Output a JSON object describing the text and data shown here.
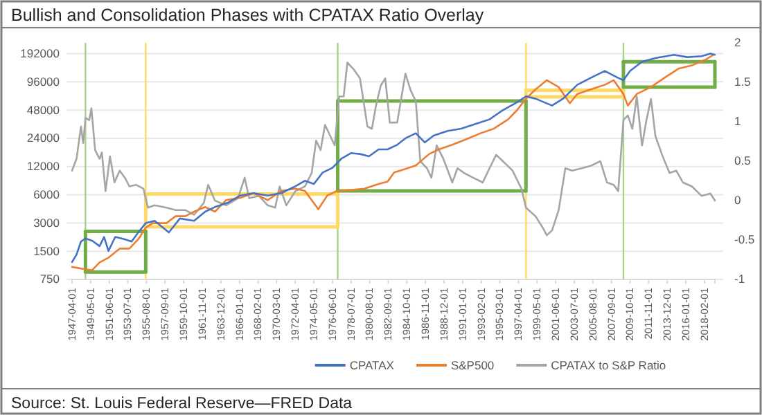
{
  "chart_data": {
    "type": "line",
    "title": "Bullish and Consolidation Phases with CPATAX Ratio Overlay",
    "annotations": [
      "Source: St. Louis Federal Reserve—FRED Data"
    ],
    "xlim": [
      "1947-04",
      "2019-04"
    ],
    "xticks": [
      "1947-04-01",
      "1949-05-01",
      "1951-06-01",
      "1953-07-01",
      "1955-08-01",
      "1957-09-01",
      "1959-10-01",
      "1961-11-01",
      "1963-12-01",
      "1966-01-01",
      "1968-02-01",
      "1970-03-01",
      "1972-04-01",
      "1974-05-01",
      "1976-06-01",
      "1978-07-01",
      "1980-08-01",
      "1982-09-01",
      "1984-10-01",
      "1986-11-01",
      "1988-12-01",
      "1991-01-01",
      "1993-02-01",
      "1995-03-01",
      "1997-04-01",
      "1999-05-01",
      "2001-06-01",
      "2003-07-01",
      "2005-08-01",
      "2007-09-01",
      "2009-10-01",
      "2011-11-01",
      "2013-12-01",
      "2016-01-01",
      "2018-02-01"
    ],
    "log": true,
    "ylim": [
      750,
      250000
    ],
    "yticks": [
      750,
      1500,
      3000,
      6000,
      12000,
      24000,
      48000,
      96000,
      192000
    ],
    "y2lim": [
      -1,
      2
    ],
    "y2ticks": [
      -1,
      -0.5,
      0,
      0.5,
      1,
      1.5,
      2
    ],
    "grid": "y",
    "legend": "bottom",
    "ref_lines": [
      {
        "axis": "x",
        "value": "1948-10",
        "color": "#a9d18e"
      },
      {
        "axis": "x",
        "value": "1955-07",
        "color": "#ffd966"
      },
      {
        "axis": "x",
        "value": "1977-01",
        "color": "#a9d18e"
      },
      {
        "axis": "x",
        "value": "1998-02",
        "color": "#ffd966"
      },
      {
        "axis": "x",
        "value": "2009-01",
        "color": "#a9d18e"
      }
    ],
    "series": [
      {
        "color": "#70ad47",
        "x": [
          "1948-10",
          "1955-07"
        ],
        "values": [
          2440,
          2440
        ],
        "errors": [
          [
            900,
            2440
          ],
          [
            900,
            2440
          ]
        ]
      },
      {
        "color": "#70ad47",
        "x": [
          "1948-10",
          "1955-07"
        ],
        "values": [
          900,
          900
        ]
      },
      {
        "color": "#ffd966",
        "x": [
          "1955-07",
          "1977-01"
        ],
        "values": [
          6100,
          6100
        ],
        "errors": [
          [
            2730,
            6100
          ],
          [
            2730,
            6100
          ]
        ]
      },
      {
        "color": "#ffd966",
        "x": [
          "1955-07",
          "1977-01"
        ],
        "values": [
          2730,
          2730
        ]
      },
      {
        "color": "#70ad47",
        "x": [
          "1977-01",
          "1998-02"
        ],
        "values": [
          59900,
          59900
        ],
        "errors": [
          [
            6600,
            59900
          ],
          [
            6600,
            59900
          ]
        ]
      },
      {
        "color": "#70ad47",
        "x": [
          "1977-01",
          "1998-02"
        ],
        "values": [
          6600,
          6600
        ]
      },
      {
        "color": "#ffd966",
        "x": [
          "1998-02",
          "2009-01"
        ],
        "values": [
          78000,
          78000
        ],
        "errors": [
          [
            66500,
            78000
          ],
          [
            66500,
            78000
          ]
        ]
      },
      {
        "color": "#ffd966",
        "x": [
          "1998-02",
          "2009-01"
        ],
        "values": [
          66500,
          66500
        ]
      },
      {
        "color": "#70ad47",
        "x": [
          "2009-01",
          "2019-04"
        ],
        "values": [
          157300,
          157300
        ],
        "errors": [
          [
            84400,
            157300
          ],
          [
            84400,
            157300
          ]
        ]
      },
      {
        "color": "#70ad47",
        "x": [
          "2009-01",
          "2019-04"
        ],
        "values": [
          84400,
          84400
        ]
      },
      {
        "name": "CPATAX to S&P Ratio",
        "color": "#a5a5a5",
        "axis": "y2",
        "x": [
          "1947-04",
          "1947-10",
          "1948-04",
          "1948-07",
          "1948-10",
          "1949-03",
          "1949-06",
          "1949-11",
          "1950-05",
          "1950-08",
          "1951-01",
          "1951-07",
          "1952-01",
          "1952-08",
          "1953-03",
          "1953-09",
          "1954-06",
          "1955-04",
          "1955-10",
          "1956-07",
          "1957-11",
          "1958-11",
          "1959-12",
          "1960-12",
          "1962-01",
          "1962-07",
          "1963-04",
          "1964-07",
          "1965-11",
          "1966-08",
          "1967-02",
          "1968-03",
          "1969-03",
          "1970-01",
          "1970-07",
          "1971-04",
          "1972-04",
          "1973-05",
          "1974-02",
          "1974-08",
          "1975-02",
          "1975-08",
          "1976-03",
          "1976-09",
          "1977-03",
          "1977-09",
          "1978-02",
          "1978-10",
          "1979-07",
          "1980-05",
          "1980-11",
          "1981-05",
          "1981-11",
          "1982-05",
          "1982-11",
          "1983-09",
          "1984-08",
          "1985-03",
          "1985-10",
          "1986-04",
          "1987-01",
          "1987-07",
          "1988-02",
          "1988-11",
          "1989-11",
          "1990-06",
          "1991-03",
          "1992-03",
          "1993-04",
          "1994-01",
          "1994-10",
          "1995-07",
          "1996-08",
          "1997-08",
          "1998-02",
          "1999-03",
          "2000-01",
          "2000-06",
          "2001-01",
          "2001-10",
          "2002-07",
          "2003-04",
          "2004-05",
          "2005-05",
          "2006-06",
          "2007-03",
          "2007-12",
          "2008-06",
          "2009-01",
          "2009-07",
          "2010-01",
          "2010-07",
          "2011-02",
          "2011-08",
          "2012-02",
          "2012-08",
          "2013-05",
          "2014-03",
          "2014-12",
          "2015-09",
          "2016-09",
          "2017-10",
          "2018-10",
          "2019-04"
        ],
        "values": [
          0.38,
          0.53,
          0.94,
          0.73,
          1.05,
          1.02,
          1.17,
          0.64,
          0.53,
          0.61,
          0.12,
          0.56,
          0.23,
          0.38,
          0.29,
          0.18,
          0.2,
          0.15,
          -0.09,
          -0.06,
          -0.09,
          -0.12,
          -0.12,
          -0.18,
          -0.03,
          0.2,
          0,
          -0.06,
          0.03,
          0.29,
          0.03,
          0.06,
          -0.06,
          -0.09,
          0.18,
          -0.06,
          0.12,
          0.18,
          0.35,
          0.76,
          0.64,
          0.96,
          0.82,
          0.7,
          1.32,
          1.32,
          1.75,
          1.67,
          1.55,
          0.94,
          0.91,
          1.23,
          1.46,
          1.55,
          0.99,
          0.99,
          1.61,
          1.4,
          1.26,
          0.5,
          0.41,
          0.29,
          0.7,
          0.53,
          0.23,
          0.41,
          0.35,
          0.29,
          0.23,
          0.41,
          0.58,
          0.5,
          0.38,
          0.15,
          -0.09,
          -0.2,
          -0.35,
          -0.44,
          -0.38,
          -0.12,
          0.41,
          0.38,
          0.41,
          0.44,
          0.5,
          0.23,
          0.2,
          0.12,
          1.02,
          1.08,
          0.91,
          1.32,
          0.7,
          1.02,
          1.29,
          0.82,
          0.58,
          0.35,
          0.38,
          0.23,
          0.18,
          0.06,
          0.09,
          0
        ]
      },
      {
        "name": "S&P500",
        "color": "#ed7d31",
        "x": [
          "1947-04",
          "1948-04",
          "1949-07",
          "1950-05",
          "1951-05",
          "1952-08",
          "1953-09",
          "1954-09",
          "1955-07",
          "1956-04",
          "1957-11",
          "1958-11",
          "1959-12",
          "1960-12",
          "1962-03",
          "1963-04",
          "1964-07",
          "1966-02",
          "1967-08",
          "1969-03",
          "1970-09",
          "1972-04",
          "1973-05",
          "1974-11",
          "1975-11",
          "1976-12",
          "1978-07",
          "1980-01",
          "1981-08",
          "1982-08",
          "1983-05",
          "1984-03",
          "1985-10",
          "1987-04",
          "1988-05",
          "1989-11",
          "1991-06",
          "1993-01",
          "1994-07",
          "1996-02",
          "1997-02",
          "1998-02",
          "1999-03",
          "2000-06",
          "2001-10",
          "2003-01",
          "2003-11",
          "2005-05",
          "2006-12",
          "2007-12",
          "2009-01",
          "2009-07",
          "2010-07",
          "2012-02",
          "2013-08",
          "2015-03",
          "2016-09",
          "2018-04",
          "2019-02"
        ],
        "values": [
          1020,
          980,
          940,
          1140,
          1280,
          1600,
          1600,
          2010,
          2670,
          2990,
          2990,
          3540,
          3540,
          3960,
          4440,
          3960,
          5260,
          5570,
          6240,
          5260,
          6600,
          6980,
          6600,
          4200,
          5890,
          6600,
          6750,
          6980,
          7820,
          8280,
          10380,
          10990,
          12300,
          16330,
          18290,
          20480,
          23460,
          27190,
          30450,
          38180,
          47900,
          63540,
          79730,
          100000,
          84380,
          56770,
          71200,
          79730,
          89270,
          100000,
          71200,
          53620,
          71200,
          84380,
          105800,
          132700,
          143700,
          166400,
          186500
        ]
      },
      {
        "name": "CPATAX",
        "color": "#4472c4",
        "x": [
          "1947-04",
          "1947-10",
          "1948-04",
          "1948-10",
          "1949-07",
          "1950-05",
          "1950-11",
          "1951-05",
          "1952-02",
          "1953-03",
          "1953-12",
          "1954-09",
          "1955-07",
          "1956-07",
          "1958-02",
          "1959-05",
          "1960-12",
          "1962-03",
          "1963-04",
          "1964-10",
          "1966-02",
          "1967-08",
          "1969-03",
          "1970-09",
          "1972-04",
          "1973-05",
          "1974-05",
          "1975-05",
          "1976-06",
          "1977-06",
          "1978-07",
          "1979-07",
          "1980-07",
          "1981-08",
          "1982-08",
          "1983-09",
          "1984-09",
          "1985-10",
          "1986-10",
          "1987-10",
          "1989-05",
          "1990-11",
          "1992-06",
          "1994-01",
          "1995-07",
          "1997-02",
          "1998-02",
          "1999-03",
          "2001-01",
          "2002-04",
          "2003-11",
          "2005-05",
          "2006-12",
          "2008-06",
          "2009-01",
          "2009-10",
          "2011-02",
          "2012-08",
          "2014-09",
          "2016-03",
          "2017-10",
          "2018-10",
          "2019-04"
        ],
        "values": [
          1150,
          1380,
          1900,
          2050,
          1940,
          1700,
          2130,
          1510,
          2130,
          2010,
          1900,
          2380,
          2990,
          3160,
          2380,
          3350,
          3160,
          3960,
          4440,
          4970,
          5890,
          6240,
          5890,
          6240,
          7390,
          8470,
          7820,
          10380,
          11620,
          14580,
          16700,
          16330,
          15430,
          18290,
          18290,
          20480,
          24270,
          27190,
          21680,
          25690,
          28760,
          30450,
          34100,
          38180,
          47900,
          58050,
          67270,
          63540,
          53620,
          63540,
          89270,
          105800,
          125500,
          105800,
          100000,
          125500,
          157300,
          172200,
          186500,
          176200,
          180200,
          192000,
          186500
        ]
      }
    ]
  }
}
